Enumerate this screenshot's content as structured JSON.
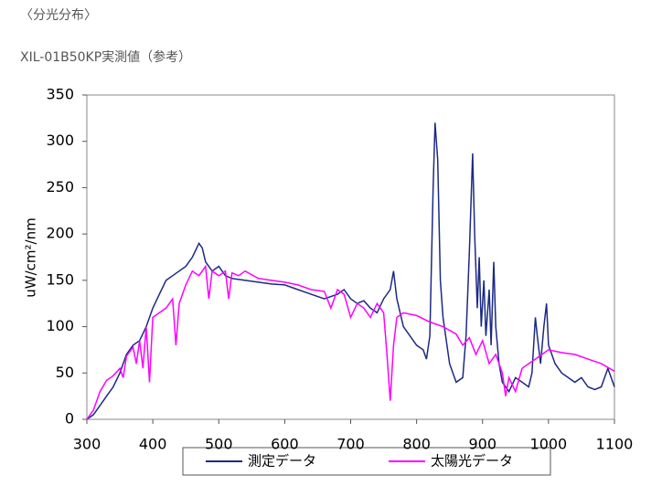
{
  "page": {
    "heading": "〈分光分布〉",
    "subheading": "XIL-01B50KP実測値（参考）"
  },
  "chart_data": {
    "type": "line",
    "ylabel": "uW/cm²/nm",
    "xlim": [
      300,
      1100
    ],
    "xticks": [
      300,
      400,
      500,
      600,
      700,
      800,
      900,
      1000,
      1100
    ],
    "ylim": [
      0,
      350
    ],
    "yticks": [
      0,
      50,
      100,
      150,
      200,
      250,
      300,
      350
    ],
    "grid": false,
    "legend": "bottom",
    "series": [
      {
        "name": "測定データ",
        "color": "#1c2a84",
        "x": [
          300,
          310,
          320,
          330,
          340,
          350,
          360,
          370,
          380,
          390,
          400,
          410,
          420,
          430,
          440,
          450,
          460,
          470,
          475,
          480,
          490,
          500,
          510,
          520,
          540,
          560,
          580,
          600,
          620,
          640,
          660,
          680,
          690,
          700,
          710,
          720,
          730,
          740,
          750,
          760,
          765,
          770,
          780,
          790,
          800,
          810,
          815,
          820,
          825,
          828,
          832,
          836,
          840,
          850,
          860,
          870,
          875,
          880,
          885,
          888,
          892,
          895,
          898,
          902,
          905,
          910,
          913,
          917,
          920,
          925,
          930,
          940,
          950,
          960,
          970,
          975,
          980,
          983,
          988,
          993,
          997,
          1000,
          1010,
          1020,
          1030,
          1040,
          1050,
          1060,
          1070,
          1080,
          1090,
          1100
        ],
        "values": [
          0,
          5,
          15,
          25,
          35,
          50,
          70,
          80,
          85,
          100,
          120,
          135,
          150,
          155,
          160,
          165,
          175,
          190,
          185,
          170,
          160,
          165,
          155,
          152,
          150,
          148,
          146,
          145,
          140,
          135,
          130,
          135,
          140,
          130,
          125,
          128,
          120,
          115,
          130,
          140,
          160,
          130,
          100,
          90,
          80,
          75,
          65,
          90,
          250,
          320,
          280,
          150,
          110,
          60,
          40,
          45,
          90,
          180,
          287,
          200,
          120,
          175,
          100,
          150,
          90,
          140,
          80,
          170,
          100,
          60,
          40,
          30,
          45,
          40,
          35,
          50,
          110,
          90,
          60,
          100,
          125,
          80,
          60,
          50,
          45,
          40,
          45,
          35,
          32,
          35,
          55,
          35
        ]
      },
      {
        "name": "太陽光データ",
        "color": "#ff00ff",
        "x": [
          300,
          310,
          320,
          330,
          340,
          350,
          355,
          360,
          370,
          375,
          380,
          385,
          390,
          395,
          400,
          410,
          420,
          430,
          435,
          440,
          450,
          460,
          470,
          480,
          485,
          490,
          500,
          510,
          515,
          520,
          530,
          540,
          560,
          580,
          600,
          620,
          640,
          660,
          670,
          680,
          690,
          700,
          710,
          720,
          730,
          740,
          750,
          755,
          760,
          765,
          770,
          780,
          800,
          820,
          840,
          860,
          870,
          880,
          890,
          900,
          910,
          920,
          930,
          935,
          940,
          950,
          960,
          970,
          980,
          990,
          1000,
          1020,
          1040,
          1060,
          1080,
          1100
        ],
        "values": [
          0,
          10,
          30,
          42,
          47,
          55,
          45,
          68,
          78,
          60,
          85,
          55,
          100,
          40,
          110,
          115,
          120,
          130,
          80,
          125,
          145,
          160,
          155,
          165,
          130,
          160,
          155,
          160,
          130,
          158,
          155,
          160,
          152,
          150,
          148,
          145,
          140,
          138,
          120,
          140,
          135,
          110,
          125,
          120,
          110,
          125,
          115,
          70,
          20,
          80,
          110,
          115,
          112,
          105,
          100,
          92,
          80,
          88,
          70,
          85,
          60,
          70,
          50,
          25,
          45,
          30,
          55,
          60,
          65,
          70,
          75,
          72,
          70,
          65,
          60,
          52
        ]
      }
    ]
  }
}
